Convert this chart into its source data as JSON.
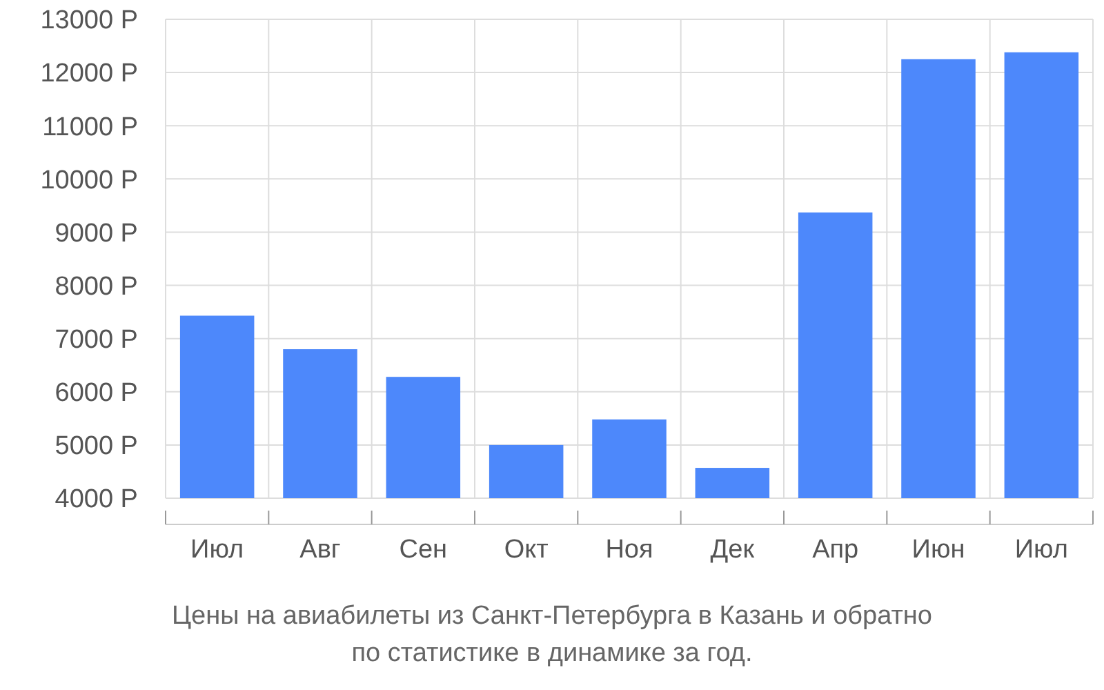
{
  "chart_data": {
    "type": "bar",
    "categories": [
      "Июл",
      "Авг",
      "Сен",
      "Окт",
      "Ноя",
      "Дек",
      "Апр",
      "Июн",
      "Июл"
    ],
    "values": [
      7430,
      6800,
      6280,
      5000,
      5480,
      4570,
      9370,
      12250,
      12380
    ],
    "color": "#4d88fb",
    "ylim": [
      4000,
      13000
    ],
    "yticks": [
      {
        "value": 4000,
        "label": "4000 Р"
      },
      {
        "value": 5000,
        "label": "5000 Р"
      },
      {
        "value": 6000,
        "label": "6000 Р"
      },
      {
        "value": 7000,
        "label": "7000 Р"
      },
      {
        "value": 8000,
        "label": "8000 Р"
      },
      {
        "value": 9000,
        "label": "9000 Р"
      },
      {
        "value": 10000,
        "label": "10000 Р"
      },
      {
        "value": 11000,
        "label": "11000 Р"
      },
      {
        "value": 12000,
        "label": "12000 Р"
      },
      {
        "value": 13000,
        "label": "13000 Р"
      }
    ],
    "grid": true,
    "annotations": [
      "Цены на авиабилеты из Санкт-Петербурга в Казань и обратно",
      "по статистике в динамике за год."
    ]
  }
}
